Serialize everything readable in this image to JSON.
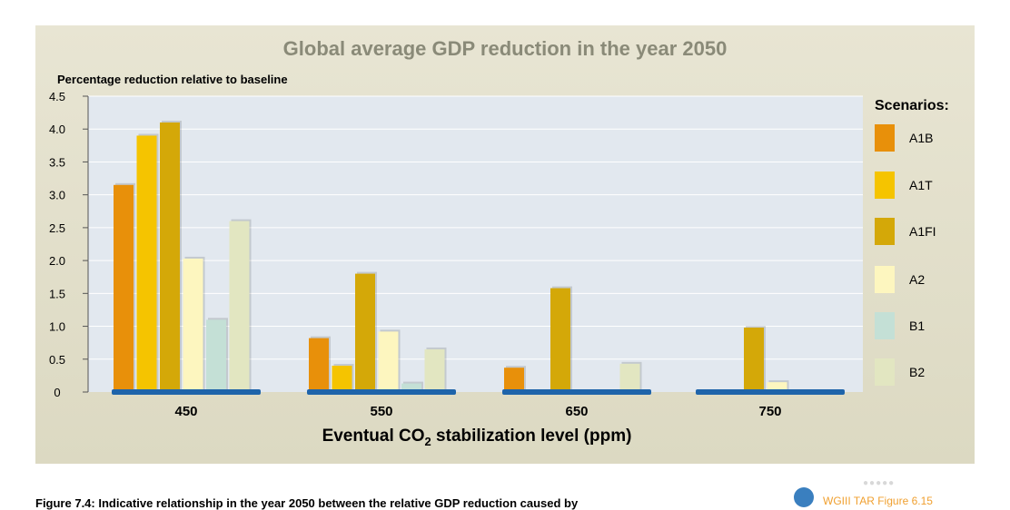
{
  "chart_data": {
    "type": "bar",
    "title": "Global average GDP reduction in the year 2050",
    "ylabel": "Percentage reduction relative to baseline",
    "xlabel_main": "Eventual CO",
    "xlabel_sub": "2",
    "xlabel_tail": " stabilization level (ppm)",
    "ylim": [
      0,
      4.5
    ],
    "yticks": [
      "0",
      "0.5",
      "1.0",
      "1.5",
      "2.0",
      "2.5",
      "3.0",
      "3.5",
      "4.0",
      "4.5"
    ],
    "categories": [
      "450",
      "550",
      "650",
      "750"
    ],
    "legend_title": "Scenarios:",
    "legend_position": "right",
    "grid": true,
    "series": [
      {
        "name": "A1B",
        "color": "#e8900a",
        "values": [
          3.15,
          0.82,
          0.37,
          null
        ]
      },
      {
        "name": "A1T",
        "color": "#f5c400",
        "values": [
          3.9,
          0.4,
          null,
          null
        ]
      },
      {
        "name": "A1FI",
        "color": "#d4a808",
        "values": [
          4.1,
          1.8,
          1.58,
          0.98
        ]
      },
      {
        "name": "A2",
        "color": "#fdf6bf",
        "values": [
          2.03,
          0.92,
          null,
          0.15
        ]
      },
      {
        "name": "B1",
        "color": "#c4e0d6",
        "values": [
          1.1,
          0.13,
          null,
          null
        ]
      },
      {
        "name": "B2",
        "color": "#e2e6c1",
        "values": [
          2.6,
          0.65,
          0.43,
          null
        ]
      }
    ]
  },
  "caption": "Figure 7.4: Indicative relationship in the year 2050 between the relative GDP reduction caused by",
  "badge_link": "WGIII TAR Figure 6.15"
}
